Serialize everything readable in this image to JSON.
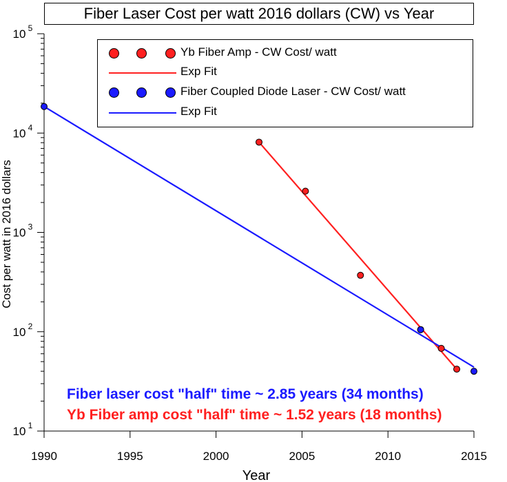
{
  "chart_data": {
    "type": "scatter",
    "title": "Fiber Laser Cost per watt 2016 dollars (CW) vs Year",
    "xlabel": "Year",
    "ylabel": "Cost per watt in 2016 dollars",
    "xlim": [
      1990,
      2015
    ],
    "ylim": [
      10,
      100000
    ],
    "yscale": "log",
    "xticks": [
      1990,
      1995,
      2000,
      2005,
      2010,
      2015
    ],
    "xtick_labels": [
      "1990",
      "1995",
      "2000",
      "2005",
      "2010",
      "2015"
    ],
    "yticks": [
      10,
      100,
      1000,
      10000,
      100000
    ],
    "ytick_labels": [
      {
        "base": "10",
        "exp": "1"
      },
      {
        "base": "10",
        "exp": "2"
      },
      {
        "base": "10",
        "exp": "3"
      },
      {
        "base": "10",
        "exp": "4"
      },
      {
        "base": "10",
        "exp": "5"
      }
    ],
    "grid": false,
    "legend_position": "top-right",
    "series": [
      {
        "name": "Yb Fiber Amp - CW Cost/ watt",
        "kind": "points",
        "color": "#ff2020",
        "x": [
          2002.5,
          2005.2,
          2008.4,
          2011.9,
          2013.1,
          2014.0
        ],
        "y": [
          8100,
          2600,
          370,
          105,
          68,
          42
        ]
      },
      {
        "name": "Exp Fit",
        "kind": "line",
        "color": "#ff2020",
        "x": [
          2002.5,
          2014.0
        ],
        "y": [
          8100,
          42
        ]
      },
      {
        "name": "Fiber Coupled Diode Laser - CW Cost/ watt",
        "kind": "points",
        "color": "#1a1aff",
        "x": [
          1990.0,
          2011.9,
          2015.0
        ],
        "y": [
          18500,
          105,
          40
        ]
      },
      {
        "name": "Exp Fit",
        "kind": "line",
        "color": "#1a1aff",
        "x": [
          1990.0,
          2015.0
        ],
        "y": [
          18500,
          44
        ]
      }
    ],
    "annotations": [
      {
        "text": "Fiber laser cost \"half\" time ~ 2.85 years (34 months)",
        "color": "#1a1aff"
      },
      {
        "text": "Yb Fiber amp cost \"half\" time ~ 1.52 years (18 months)",
        "color": "#ff2020"
      }
    ]
  }
}
